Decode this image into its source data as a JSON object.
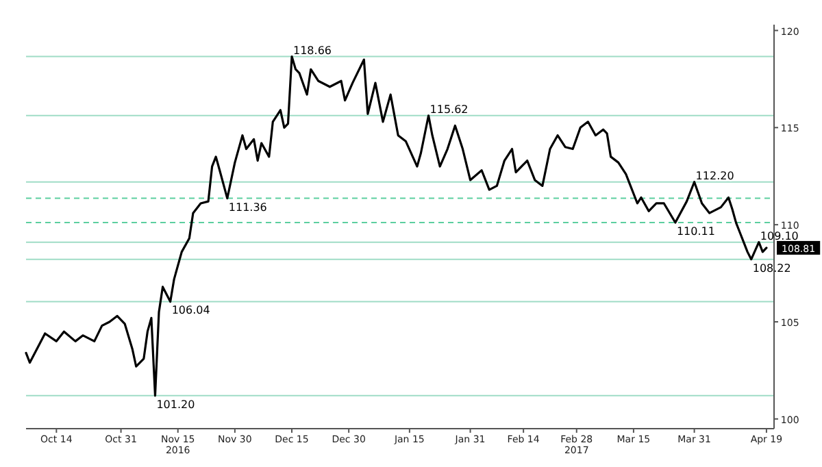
{
  "chart_data": {
    "type": "line",
    "x": [
      "2016-10-06",
      "2016-10-07",
      "2016-10-11",
      "2016-10-14",
      "2016-10-16",
      "2016-10-19",
      "2016-10-21",
      "2016-10-24",
      "2016-10-26",
      "2016-10-28",
      "2016-10-30",
      "2016-11-01",
      "2016-11-03",
      "2016-11-04",
      "2016-11-06",
      "2016-11-07",
      "2016-11-08",
      "2016-11-09",
      "2016-11-10",
      "2016-11-11",
      "2016-11-13",
      "2016-11-14",
      "2016-11-16",
      "2016-11-18",
      "2016-11-19",
      "2016-11-21",
      "2016-11-23",
      "2016-11-24",
      "2016-11-25",
      "2016-11-26",
      "2016-11-28",
      "2016-11-30",
      "2016-12-02",
      "2016-12-03",
      "2016-12-05",
      "2016-12-06",
      "2016-12-07",
      "2016-12-09",
      "2016-12-10",
      "2016-12-12",
      "2016-12-13",
      "2016-12-14",
      "2016-12-15",
      "2016-12-16",
      "2016-12-17",
      "2016-12-19",
      "2016-12-20",
      "2016-12-22",
      "2016-12-25",
      "2016-12-28",
      "2016-12-29",
      "2016-12-31",
      "2017-01-03",
      "2017-01-04",
      "2017-01-06",
      "2017-01-08",
      "2017-01-10",
      "2017-01-12",
      "2017-01-14",
      "2017-01-17",
      "2017-01-18",
      "2017-01-20",
      "2017-01-21",
      "2017-01-23",
      "2017-01-25",
      "2017-01-27",
      "2017-01-29",
      "2017-01-31",
      "2017-02-03",
      "2017-02-05",
      "2017-02-07",
      "2017-02-09",
      "2017-02-11",
      "2017-02-12",
      "2017-02-15",
      "2017-02-17",
      "2017-02-19",
      "2017-02-21",
      "2017-02-23",
      "2017-02-25",
      "2017-02-27",
      "2017-03-01",
      "2017-03-03",
      "2017-03-05",
      "2017-03-07",
      "2017-03-08",
      "2017-03-09",
      "2017-03-11",
      "2017-03-13",
      "2017-03-14",
      "2017-03-16",
      "2017-03-17",
      "2017-03-19",
      "2017-03-21",
      "2017-03-23",
      "2017-03-26",
      "2017-03-29",
      "2017-03-31",
      "2017-04-02",
      "2017-04-04",
      "2017-04-07",
      "2017-04-09",
      "2017-04-10",
      "2017-04-11",
      "2017-04-12",
      "2017-04-13",
      "2017-04-14",
      "2017-04-15",
      "2017-04-17",
      "2017-04-18",
      "2017-04-19"
    ],
    "series": [
      {
        "color": "#000000",
        "values": [
          103.4,
          102.9,
          104.4,
          104.0,
          104.5,
          104.0,
          104.3,
          104.0,
          104.8,
          105.0,
          105.3,
          104.9,
          103.6,
          102.7,
          103.1,
          104.5,
          105.2,
          101.2,
          105.5,
          106.8,
          106.04,
          107.2,
          108.6,
          109.3,
          110.6,
          111.1,
          111.2,
          113.0,
          113.5,
          112.8,
          111.36,
          113.2,
          114.6,
          113.9,
          114.4,
          113.3,
          114.2,
          113.5,
          115.3,
          115.9,
          115.0,
          115.2,
          118.66,
          118.0,
          117.8,
          116.7,
          118.0,
          117.4,
          117.1,
          117.4,
          116.4,
          117.3,
          118.5,
          115.7,
          117.3,
          115.3,
          116.7,
          114.6,
          114.3,
          113.0,
          113.7,
          115.62,
          114.6,
          113.0,
          113.9,
          115.1,
          113.9,
          112.3,
          112.8,
          111.8,
          112.0,
          113.3,
          113.9,
          112.7,
          113.3,
          112.3,
          112.0,
          113.9,
          114.6,
          114.0,
          113.9,
          115.0,
          115.3,
          114.6,
          114.9,
          114.7,
          113.5,
          113.2,
          112.6,
          112.1,
          111.1,
          111.4,
          110.7,
          111.1,
          111.1,
          110.11,
          111.2,
          112.2,
          111.1,
          110.6,
          110.9,
          111.4,
          110.8,
          110.1,
          109.6,
          109.1,
          108.6,
          108.22,
          109.1,
          108.6,
          108.81
        ]
      }
    ],
    "xlim": [
      "2016-10-06",
      "2017-04-21"
    ],
    "xticks": [
      {
        "value": "2016-10-14",
        "label": "Oct 14"
      },
      {
        "value": "2016-10-31",
        "label": "Oct 31"
      },
      {
        "value": "2016-11-15",
        "label": "Nov 15\n2016"
      },
      {
        "value": "2016-11-30",
        "label": "Nov 30"
      },
      {
        "value": "2016-12-15",
        "label": "Dec 15"
      },
      {
        "value": "2016-12-30",
        "label": "Dec 30"
      },
      {
        "value": "2017-01-15",
        "label": "Jan 15"
      },
      {
        "value": "2017-01-31",
        "label": "Jan 31"
      },
      {
        "value": "2017-02-14",
        "label": "Feb 14"
      },
      {
        "value": "2017-02-28",
        "label": "Feb 28\n2017"
      },
      {
        "value": "2017-03-15",
        "label": "Mar 15"
      },
      {
        "value": "2017-03-31",
        "label": "Mar 31"
      },
      {
        "value": "2017-04-19",
        "label": "Apr 19"
      }
    ],
    "ylim": [
      99.5,
      120.3
    ],
    "yticks": [
      100,
      105,
      110,
      115,
      120,
      {
        "value": 108.81,
        "label": "108.81"
      }
    ],
    "grid": false,
    "marker": "none",
    "line_style": "solid",
    "ref_lines": [
      {
        "axis": "y",
        "value": 118.66,
        "color": "#9fdcc6",
        "line_style": "solid"
      },
      {
        "axis": "y",
        "value": 115.62,
        "color": "#9fdcc6",
        "line_style": "solid"
      },
      {
        "axis": "y",
        "value": 112.2,
        "color": "#9fdcc6",
        "line_style": "solid"
      },
      {
        "axis": "y",
        "value": 111.36,
        "color": "#5ccf9f",
        "line_style": "dashed"
      },
      {
        "axis": "y",
        "value": 110.11,
        "color": "#5ccf9f",
        "line_style": "dashed"
      },
      {
        "axis": "y",
        "value": 109.1,
        "color": "#9fdcc6",
        "line_style": "solid"
      },
      {
        "axis": "y",
        "value": 108.22,
        "color": "#9fdcc6",
        "line_style": "solid"
      },
      {
        "axis": "y",
        "value": 106.04,
        "color": "#9fdcc6",
        "line_style": "solid"
      },
      {
        "axis": "y",
        "value": 101.2,
        "color": "#9fdcc6",
        "line_style": "solid"
      }
    ],
    "annotations": [
      {
        "text": "118.66",
        "x": "2016-12-15",
        "y": 118.66
      },
      {
        "text": "115.62",
        "x": "2017-01-20",
        "y": 115.62
      },
      {
        "text": "112.20",
        "x": "2017-03-31",
        "y": 112.2
      },
      {
        "text": "111.36",
        "x": "2016-11-28",
        "y": 111.36
      },
      {
        "text": "110.11",
        "x": "2017-03-26",
        "y": 110.11
      },
      {
        "text": "109.10",
        "x": "2017-04-17",
        "y": 109.1
      },
      {
        "text": "108.22",
        "x": "2017-04-15",
        "y": 108.22
      },
      {
        "text": "106.04",
        "x": "2016-11-13",
        "y": 106.04
      },
      {
        "text": "101.20",
        "x": "2016-11-09",
        "y": 101.2
      }
    ]
  }
}
